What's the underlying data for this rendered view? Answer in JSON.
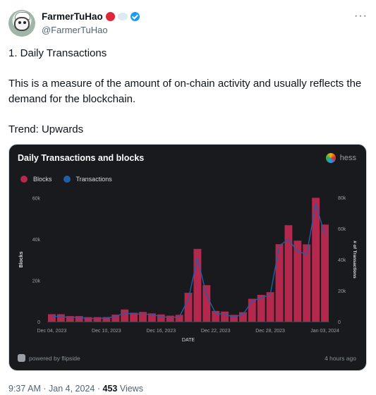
{
  "author": {
    "name": "FarmerTuHao",
    "handle": "@FarmerTuHao"
  },
  "tweet": {
    "line1": "1. Daily Transactions",
    "line2": "This is a measure of the amount of on-chain activity and usually reflects the demand for the blockchain.",
    "line3": "Trend: Upwards"
  },
  "card": {
    "title": "Daily Transactions and blocks",
    "brand_name": "hess",
    "powered_by": "powered by flipside",
    "updated": "4 hours ago"
  },
  "meta": {
    "time": "9:37 AM",
    "date": "Jan 4, 2024",
    "sep": "·",
    "views_count": "453",
    "views_label": "Views"
  },
  "colors": {
    "blocks": "#b5284d",
    "transactions": "#1f5fa8",
    "verified": "#1d9bf0"
  },
  "chart_data": {
    "type": "bar",
    "title": "Daily Transactions and blocks",
    "xlabel": "DATE",
    "ylabel": "Blocks",
    "y2label": "# of Transactions",
    "ylim": [
      0,
      64000
    ],
    "y2lim": [
      0,
      85000
    ],
    "yticks": [
      "0",
      "20k",
      "40k",
      "60k"
    ],
    "y2ticks": [
      "0",
      "20k",
      "40k",
      "60k",
      "80k"
    ],
    "xtick_labels": [
      "Dec 04, 2023",
      "Dec 10, 2023",
      "Dec 16, 2023",
      "Dec 22, 2023",
      "Dec 28, 2023",
      "Jan 03, 2024"
    ],
    "legend_position": "top-left",
    "grid": false,
    "series": [
      {
        "name": "Blocks",
        "kind": "bar",
        "values": [
          3600,
          3600,
          2700,
          2700,
          2200,
          2200,
          2200,
          3400,
          5900,
          4300,
          4700,
          4000,
          3500,
          2900,
          3300,
          14000,
          35300,
          17700,
          5200,
          4900,
          3300,
          4600,
          11100,
          13000,
          14300,
          37600,
          46800,
          39300,
          37500,
          60100,
          47100
        ]
      },
      {
        "name": "Transactions",
        "kind": "line",
        "values": [
          3500,
          3200,
          2800,
          2800,
          2000,
          2100,
          2300,
          3400,
          5500,
          4900,
          4900,
          4600,
          3200,
          2800,
          3000,
          14500,
          41000,
          17000,
          5400,
          4600,
          3100,
          4500,
          13300,
          15300,
          17400,
          49000,
          53000,
          45300,
          43300,
          76000,
          56000
        ]
      }
    ]
  }
}
